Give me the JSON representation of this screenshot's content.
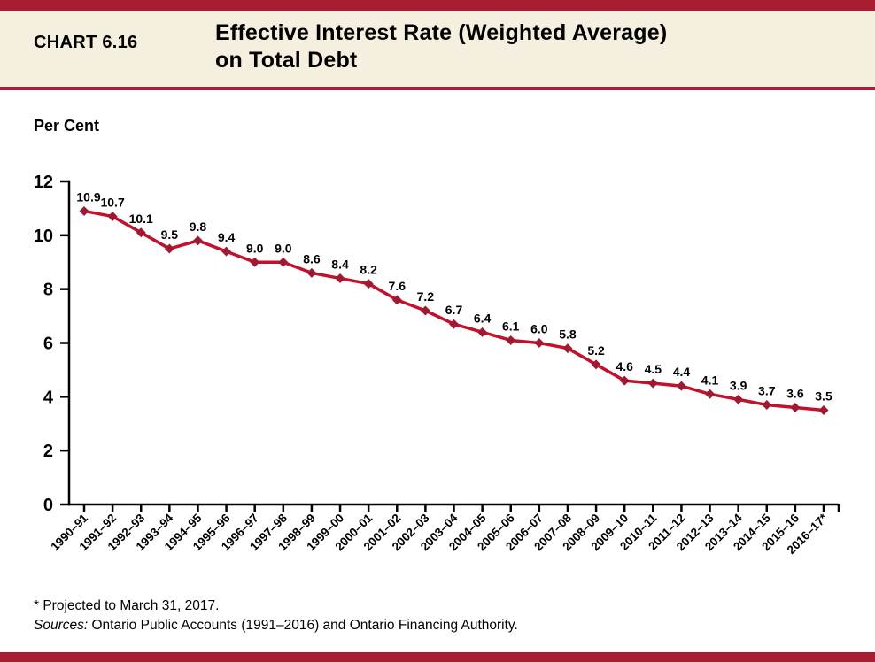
{
  "header": {
    "chart_label": "CHART 6.16",
    "title_line1": "Effective Interest Rate (Weighted Average)",
    "title_line2": "on Total Debt"
  },
  "chart_data": {
    "type": "line",
    "title": "Effective Interest Rate (Weighted Average) on Total Debt",
    "ylabel": "Per Cent",
    "xlabel": "",
    "categories": [
      "1990–91",
      "1991–92",
      "1992–93",
      "1993–94",
      "1994–95",
      "1995–96",
      "1996–97",
      "1997–98",
      "1998–99",
      "1999–00",
      "2000–01",
      "2001–02",
      "2002–03",
      "2003–04",
      "2004–05",
      "2005–06",
      "2006–07",
      "2007–08",
      "2008–09",
      "2009–10",
      "2010–11",
      "2011–12",
      "2012–13",
      "2013–14",
      "2014–15",
      "2015–16",
      "2016–17*"
    ],
    "series": [
      {
        "name": "Effective Interest Rate (Weighted Average) on Total Debt",
        "values": [
          10.9,
          10.7,
          10.1,
          9.5,
          9.8,
          9.4,
          9.0,
          9.0,
          8.6,
          8.4,
          8.2,
          7.6,
          7.2,
          6.7,
          6.4,
          6.1,
          6.0,
          5.8,
          5.2,
          4.6,
          4.5,
          4.4,
          4.1,
          3.9,
          3.7,
          3.6,
          3.5
        ]
      }
    ],
    "ylim": [
      0,
      12
    ],
    "yticks": [
      0,
      2,
      4,
      6,
      8,
      10,
      12
    ],
    "grid": false,
    "legend_position": "none",
    "data_labels": true,
    "data_label_decimals": 1,
    "marker": "diamond"
  },
  "footnotes": {
    "note": "* Projected to March 31, 2017.",
    "sources_label": "Sources:",
    "sources_text": " Ontario Public Accounts (1991–2016) and Ontario Financing Authority."
  },
  "colors": {
    "accent_bar": "#a81d32",
    "header_background": "#f5efdf",
    "line": "#c2112c",
    "marker": "#9e1a32",
    "axis": "#000000",
    "text": "#000000"
  }
}
